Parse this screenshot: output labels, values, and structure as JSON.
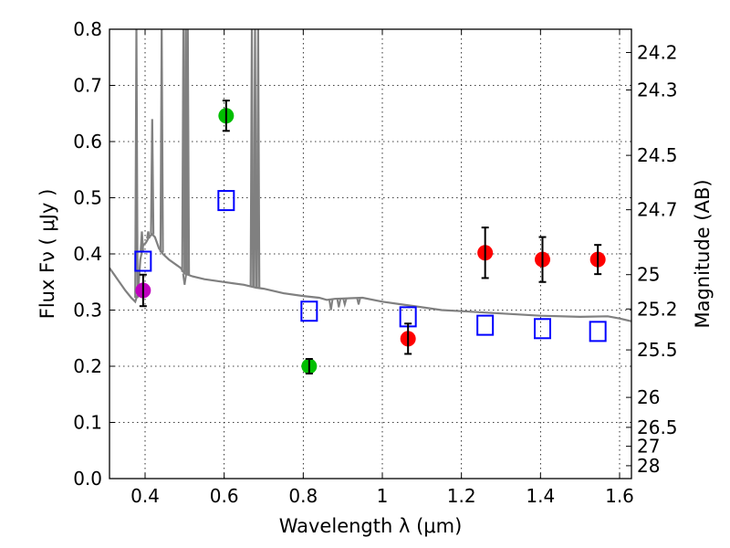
{
  "chart_data": {
    "type": "scatter",
    "title": "",
    "xlabel": "Wavelength  λ (μm)",
    "ylabel": "Flux  Fν  ( μJy )",
    "ylabel_right": "Magnitude (AB)",
    "xlim": [
      0.31,
      1.63
    ],
    "ylim": [
      0.0,
      0.8
    ],
    "grid": true,
    "x_ticks": [
      0.4,
      0.6,
      0.8,
      1.0,
      1.2,
      1.4,
      1.6
    ],
    "x_tick_labels": [
      "0.4",
      "0.6",
      "0.8",
      "1",
      "1.2",
      "1.4",
      "1.6"
    ],
    "y_ticks": [
      0.0,
      0.1,
      0.2,
      0.3,
      0.4,
      0.5,
      0.6,
      0.7,
      0.8
    ],
    "y_tick_labels": [
      "0.0",
      "0.1",
      "0.2",
      "0.3",
      "0.4",
      "0.5",
      "0.6",
      "0.7",
      "0.8"
    ],
    "right_ticks_mag": [
      24.2,
      24.3,
      24.5,
      24.7,
      25,
      25.2,
      25.5,
      26,
      26.5,
      27,
      28
    ],
    "right_tick_labels": [
      "24.2",
      "24.3",
      "24.5",
      "24.7",
      "25",
      "25.2",
      "25.5",
      "26",
      "26.5",
      "27",
      "28"
    ],
    "mag_zero_point": 23.9,
    "series": [
      {
        "name": "model-spectrum",
        "kind": "line",
        "color": "#808080",
        "continuum": [
          [
            0.31,
            0.375
          ],
          [
            0.33,
            0.355
          ],
          [
            0.35,
            0.335
          ],
          [
            0.365,
            0.322
          ],
          [
            0.375,
            0.315
          ],
          [
            0.382,
            0.33
          ],
          [
            0.388,
            0.39
          ],
          [
            0.395,
            0.415
          ],
          [
            0.402,
            0.42
          ],
          [
            0.41,
            0.43
          ],
          [
            0.418,
            0.435
          ],
          [
            0.425,
            0.43
          ],
          [
            0.435,
            0.41
          ],
          [
            0.445,
            0.4
          ],
          [
            0.46,
            0.39
          ],
          [
            0.48,
            0.38
          ],
          [
            0.49,
            0.375
          ],
          [
            0.5,
            0.365
          ],
          [
            0.52,
            0.36
          ],
          [
            0.55,
            0.355
          ],
          [
            0.6,
            0.35
          ],
          [
            0.65,
            0.345
          ],
          [
            0.68,
            0.34
          ],
          [
            0.7,
            0.338
          ],
          [
            0.75,
            0.33
          ],
          [
            0.8,
            0.325
          ],
          [
            0.84,
            0.322
          ],
          [
            0.86,
            0.318
          ],
          [
            0.88,
            0.32
          ],
          [
            0.95,
            0.322
          ],
          [
            1.0,
            0.315
          ],
          [
            1.05,
            0.31
          ],
          [
            1.1,
            0.305
          ],
          [
            1.15,
            0.3
          ],
          [
            1.2,
            0.298
          ],
          [
            1.3,
            0.294
          ],
          [
            1.4,
            0.29
          ],
          [
            1.5,
            0.288
          ],
          [
            1.57,
            0.289
          ],
          [
            1.6,
            0.285
          ],
          [
            1.63,
            0.28
          ]
        ],
        "emission_lines": [
          {
            "wavelength": 0.378,
            "peak": 0.8
          },
          {
            "wavelength": 0.392,
            "peak": 0.44
          },
          {
            "wavelength": 0.408,
            "peak": 0.44
          },
          {
            "wavelength": 0.418,
            "peak": 0.64
          },
          {
            "wavelength": 0.442,
            "peak": 0.8
          },
          {
            "wavelength": 0.497,
            "peak": 0.8
          },
          {
            "wavelength": 0.503,
            "peak": 0.8
          },
          {
            "wavelength": 0.508,
            "peak": 0.8
          },
          {
            "wavelength": 0.67,
            "peak": 0.8
          },
          {
            "wavelength": 0.678,
            "peak": 0.8
          },
          {
            "wavelength": 0.686,
            "peak": 0.8
          }
        ],
        "absorption_features": [
          {
            "wavelength": 0.5,
            "depth_to": 0.345
          },
          {
            "wavelength": 0.87,
            "depth_to": 0.3
          },
          {
            "wavelength": 0.89,
            "depth_to": 0.305
          },
          {
            "wavelength": 0.905,
            "depth_to": 0.31
          },
          {
            "wavelength": 0.94,
            "depth_to": 0.31
          }
        ]
      },
      {
        "name": "model-photometry",
        "kind": "open-square",
        "color": "#0000ff",
        "points": [
          {
            "x": 0.395,
            "y": 0.387
          },
          {
            "x": 0.605,
            "y": 0.495
          },
          {
            "x": 0.815,
            "y": 0.298
          },
          {
            "x": 1.065,
            "y": 0.288
          },
          {
            "x": 1.26,
            "y": 0.273
          },
          {
            "x": 1.405,
            "y": 0.267
          },
          {
            "x": 1.545,
            "y": 0.262
          }
        ]
      },
      {
        "name": "observed-blue-band",
        "kind": "filled-circle",
        "color": "#bf00bf",
        "points": [
          {
            "x": 0.395,
            "y": 0.335,
            "err": 0.028
          }
        ]
      },
      {
        "name": "observed-optical",
        "kind": "filled-circle",
        "color": "#00bf00",
        "points": [
          {
            "x": 0.605,
            "y": 0.646,
            "err": 0.027
          },
          {
            "x": 0.815,
            "y": 0.2,
            "err": 0.013
          }
        ]
      },
      {
        "name": "observed-nir",
        "kind": "filled-circle",
        "color": "#ff0000",
        "points": [
          {
            "x": 1.065,
            "y": 0.249,
            "err": 0.027
          },
          {
            "x": 1.26,
            "y": 0.402,
            "err": 0.045
          },
          {
            "x": 1.405,
            "y": 0.39,
            "err": 0.04
          },
          {
            "x": 1.545,
            "y": 0.39,
            "err": 0.026
          }
        ]
      }
    ]
  }
}
